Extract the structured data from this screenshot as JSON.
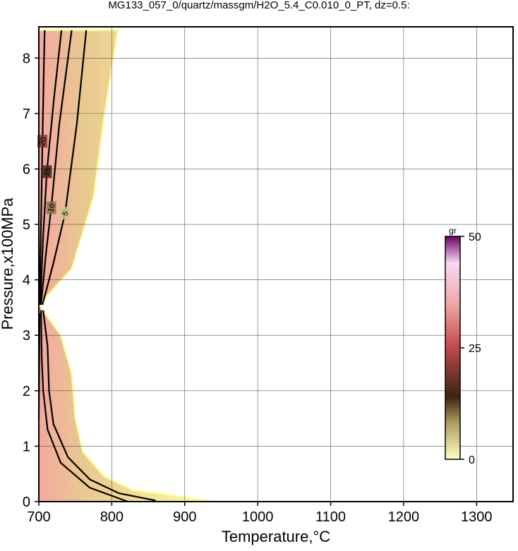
{
  "chart_data": {
    "type": "contour",
    "title": "MG133_057_0/quartz/massgm/H2O_5.4_C0.010_0_PT, dz=0.5:",
    "xlabel": "Temperature,°C",
    "ylabel": "Pressure,x100MPa",
    "xlim": [
      700,
      1350
    ],
    "ylim": [
      0,
      8.5
    ],
    "xticks": [
      700,
      800,
      900,
      1000,
      1100,
      1200,
      1300
    ],
    "yticks": [
      0,
      1,
      2,
      3,
      4,
      5,
      6,
      7,
      8
    ],
    "grid": true,
    "field": {
      "x": [
        700,
        700,
        808,
        790,
        775,
        745,
        700,
        730,
        745,
        750,
        760,
        790,
        830,
        890,
        940
      ],
      "y": [
        0,
        8.5,
        8.5,
        7,
        5.5,
        4.2,
        3.55,
        3.0,
        2.3,
        1.5,
        0.9,
        0.45,
        0.2,
        0.1,
        0
      ]
    },
    "contours": [
      {
        "level": 20,
        "x": [
          701,
          703,
          705,
          707,
          708
        ],
        "y": [
          3.6,
          5,
          6.5,
          7.9,
          8.5
        ]
      },
      {
        "level": 15,
        "x": [
          702,
          706,
          711,
          721,
          731
        ],
        "y": [
          3.55,
          4.8,
          5.95,
          7.3,
          8.5
        ]
      },
      {
        "level": 10,
        "x": [
          703,
          710,
          717,
          728,
          745
        ],
        "y": [
          3.55,
          4.5,
          5.3,
          6.8,
          8.5
        ]
      },
      {
        "level": 5,
        "x": [
          705,
          720,
          736,
          752,
          765
        ],
        "y": [
          3.55,
          4.3,
          5.2,
          6.8,
          8.5
        ]
      }
    ],
    "lower_contours": [
      {
        "level": 5,
        "x": [
          706,
          712,
          714,
          720,
          740,
          770,
          810,
          860
        ],
        "y": [
          3.45,
          2.8,
          2.0,
          1.4,
          0.8,
          0.4,
          0.15,
          0.02
        ]
      },
      {
        "level": 10,
        "x": [
          703,
          704,
          706,
          712,
          730,
          770,
          822
        ],
        "y": [
          3.45,
          2.6,
          2.0,
          1.3,
          0.7,
          0.25,
          0
        ]
      },
      {
        "level": 15,
        "x": [
          701,
          700
        ],
        "y": [
          3.4,
          1.5
        ]
      }
    ],
    "colorbar": {
      "label": "gr",
      "clim": [
        0,
        50
      ],
      "ticks": [
        0,
        25,
        50
      ]
    },
    "colormap": [
      [
        0,
        "#ffffc4"
      ],
      [
        8,
        "#b0a060"
      ],
      [
        14,
        "#3a2414"
      ],
      [
        25,
        "#c04848"
      ],
      [
        35,
        "#f0a8a8"
      ],
      [
        44,
        "#f8d8f4"
      ],
      [
        50,
        "#6a006a"
      ]
    ]
  }
}
